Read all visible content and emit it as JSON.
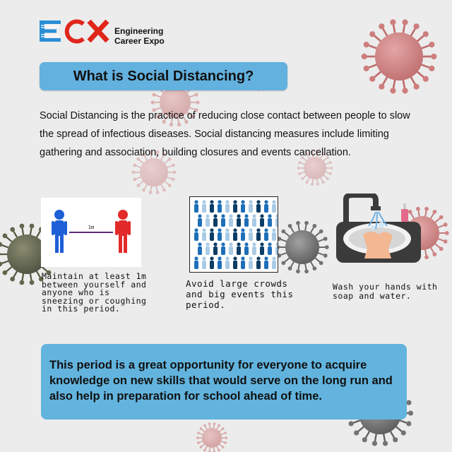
{
  "brand": {
    "logo_letters": "ECX",
    "name_line1": "Engineering",
    "name_line2": "Career Expo"
  },
  "title": "What is Social Distancing?",
  "intro": "Social Distancing is the practice of reducing close contact between people to slow the spread of infectious diseases.  Social distancing measures include limiting gathering and association, building closures and events cancellation.",
  "tips": [
    {
      "icon": "distance-icon",
      "distance_label": "1m",
      "caption": "Maintain at least 1m between yourself and anyone who is sneezing or coughing in this period."
    },
    {
      "icon": "crowd-icon",
      "caption": "Avoid large crowds and big events this period."
    },
    {
      "icon": "handwash-icon",
      "caption": "Wash your hands with soap and water."
    }
  ],
  "closing": "This period is a great opportunity for everyone to acquire knowledge on new skills that would serve on the long run and also help in preparation for school ahead of time.",
  "colors": {
    "accent_blue": "#62b1df",
    "logo_blue": "#2a8fd6",
    "logo_red": "#e0251b",
    "virus_red": "#c96a6a",
    "virus_gray": "#6d6d6d"
  }
}
